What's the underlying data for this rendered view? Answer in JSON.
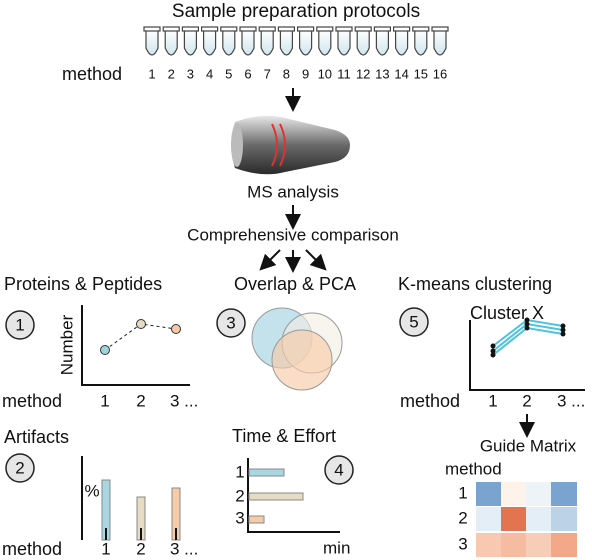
{
  "header": {
    "title": "Sample preparation protocols",
    "method_label": "method",
    "methods": [
      "1",
      "2",
      "3",
      "4",
      "5",
      "6",
      "7",
      "8",
      "9",
      "10",
      "11",
      "12",
      "13",
      "14",
      "15",
      "16"
    ]
  },
  "steps": [
    "MS analysis",
    "Comprehensive comparison"
  ],
  "panels": [
    {
      "number": "1",
      "title": "Proteins & Peptides",
      "y_label": "Number",
      "x_label": "method",
      "x_ticks": [
        "1",
        "2",
        "3 ..."
      ]
    },
    {
      "number": "2",
      "title": "Artifacts",
      "y_label": "%",
      "x_label": "method",
      "x_ticks": [
        "1",
        "2",
        "3 ..."
      ]
    },
    {
      "number": "3",
      "title": "Overlap & PCA"
    },
    {
      "number": "4",
      "title": "Time & Effort",
      "x_label": "min",
      "y_ticks": [
        "1",
        "2",
        "3"
      ]
    },
    {
      "number": "5",
      "title": "K-means clustering",
      "subtitle": "Cluster X",
      "x_label": "method",
      "x_ticks": [
        "1",
        "2",
        "3 ..."
      ],
      "matrix": {
        "title": "Guide Matrix",
        "row_label": "method",
        "rows": [
          "1",
          "2",
          "3"
        ]
      }
    }
  ]
}
